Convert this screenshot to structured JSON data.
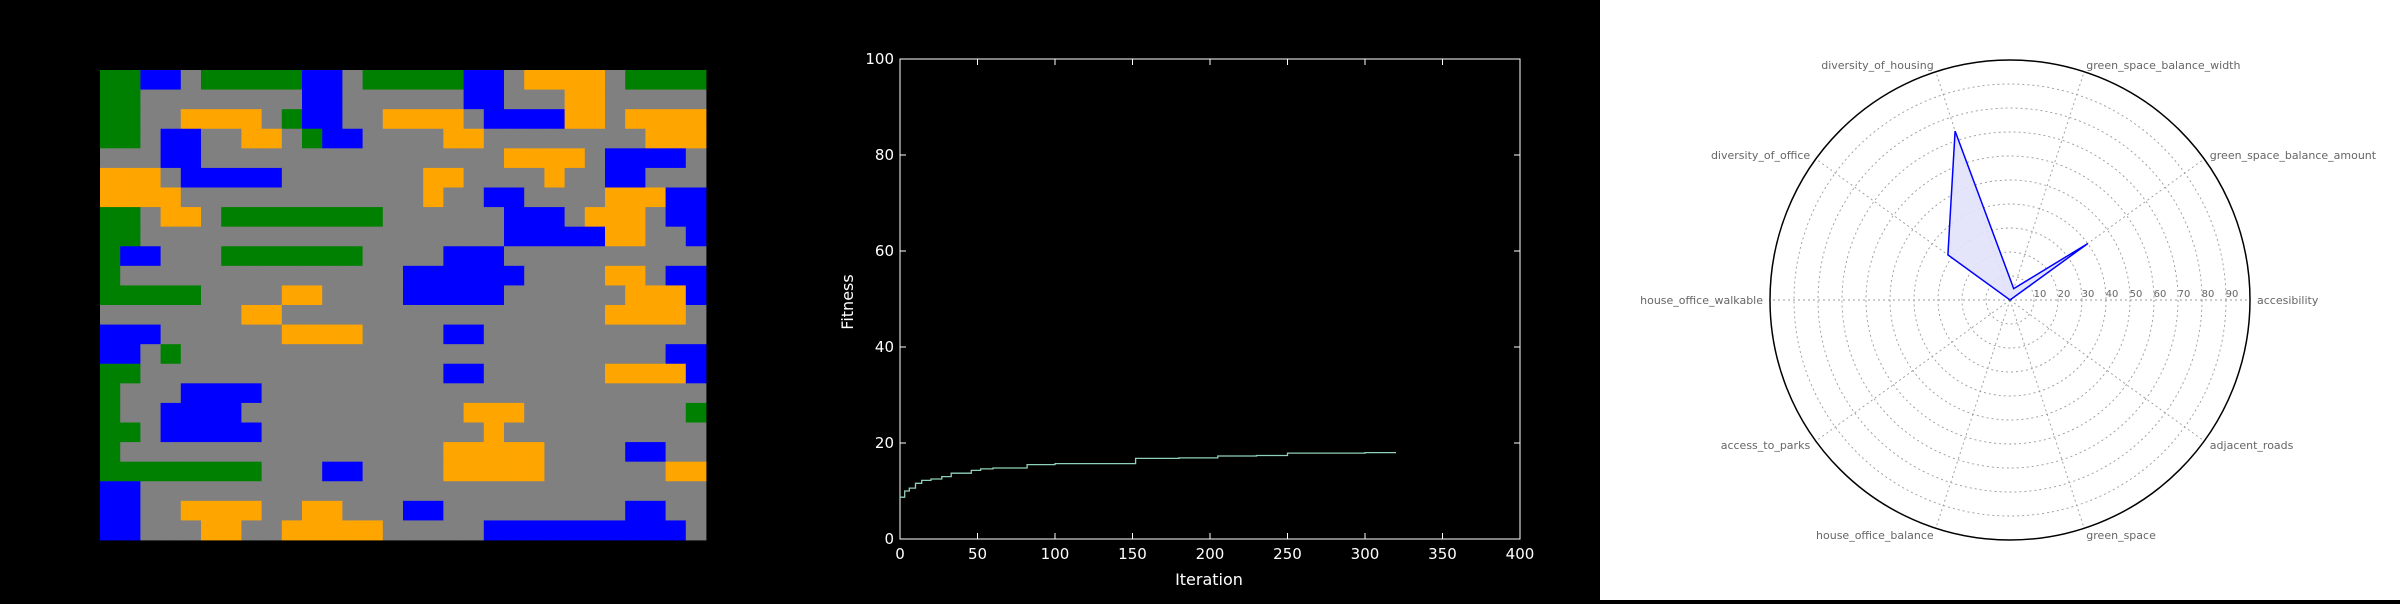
{
  "colors": {
    "figure_bg": "#000000",
    "radar_bg": "#ffffff",
    "road": "#808080",
    "green_space": "#008000",
    "housing": "#0000ff",
    "office": "#ffa500",
    "fitness_line": "#8fd1b6",
    "axis_text": "#ffffff",
    "radar_line": "#0000ff",
    "radar_fill": "#e1e1fa",
    "radar_label": "#666666"
  },
  "chart_data": [
    {
      "type": "heatmap",
      "title": "",
      "legend": "none",
      "rows": 24,
      "cols": 30,
      "palette": {
        "R": "road",
        "G": "green_space",
        "B": "housing",
        "O": "office"
      },
      "grid": [
        "GGBBRGGGGGBBRGGGGGBBROOOORGGGG",
        "GGRRRRRRRRBBRRRRRRBBRRROORRRRR",
        "GGRROOOORGBBRROOOORBBBBOOROOOO",
        "GGRBBRROORGBBRRRROORRRRRRRROOO",
        "RRRBBRRRRRRRRRRRRRRROOOORBBBBR",
        "OOORBBBBBRRRRRRROORRRRORRBBRRR",
        "OOOORRRRRRRRRRRRORRBBRRRROOOBB",
        "GGROORGGGGGGGGRRRRRRBBBROOORBB",
        "GGRRRRRRRRRRRRRRRRRRBBBBBOORRB",
        "GBBRRRGGGGGGGRRRRBBBRRRRRRRRRR",
        "GRRRRRRRRRRRRRRBBBBBBRRRROORBB",
        "GGGGGRRRROORRRRBBBBBRRRRRROOOB",
        "RRRRRRROORRRRRRRRRRRRRRRROOOOR",
        "BBBRRRRRROOOORRRRBBRRRRRRRRRRR",
        "BBRGRRRRRRRRRRRRRRRRRRRRRRRRBB",
        "GGRRRRRRRRRRRRRRRBBRRRRRROOOOB",
        "GRRRBBBBRRRRRRRRRRRRRRRRRRRRRR",
        "GRRBBBBRRRRRRRRRRROOORRRRRRRRG",
        "GGRBBBBBRRRRRRRRRRRORRRRRRRRRR",
        "GRRRRRRRRRRRRRRRROOOOORRRRBBRR",
        "GGGGGGGGRRRBBRRRROOOOORRRRRROO",
        "BBRRRRRRRRRRRRRRRRRRRRRRRRRRRR",
        "BBRROOOORROORRRBBRRRRRRRRRBBRR",
        "BBRRROORROOOOORRRRRBBBBBBBBBBR"
      ]
    },
    {
      "type": "line",
      "title": "",
      "xlabel": "Iteration",
      "ylabel": "Fitness",
      "xlim": [
        0,
        400
      ],
      "ylim": [
        0,
        100
      ],
      "xticks": [
        0,
        50,
        100,
        150,
        200,
        250,
        300,
        350,
        400
      ],
      "yticks": [
        0,
        20,
        40,
        60,
        80,
        100
      ],
      "grid": false,
      "legend": "none",
      "x": [
        0,
        3,
        6,
        10,
        14,
        20,
        27,
        33,
        38,
        46,
        52,
        60,
        70,
        82,
        100,
        130,
        152,
        180,
        205,
        230,
        250,
        280,
        300,
        320
      ],
      "y": [
        8.7,
        10.0,
        10.6,
        11.6,
        12.2,
        12.5,
        13.0,
        13.7,
        13.7,
        14.3,
        14.6,
        14.8,
        14.8,
        15.5,
        15.7,
        15.7,
        16.8,
        16.9,
        17.3,
        17.4,
        17.9,
        17.9,
        18.0,
        18.0
      ]
    },
    {
      "type": "radar",
      "title": "",
      "legend": "none",
      "grid": true,
      "rlim": [
        0,
        100
      ],
      "rticks": [
        10,
        20,
        30,
        40,
        50,
        60,
        70,
        80,
        90
      ],
      "axes": [
        "accesibility",
        "green_space_balance_amount",
        "green_space_balance_width",
        "diversity_of_housing",
        "diversity_of_office",
        "house_office_walkable",
        "access_to_parks",
        "house_office_balance",
        "green_space",
        "adjacent_roads"
      ],
      "values": [
        0,
        40,
        5,
        74,
        32,
        0,
        0,
        0,
        0,
        0
      ]
    }
  ]
}
